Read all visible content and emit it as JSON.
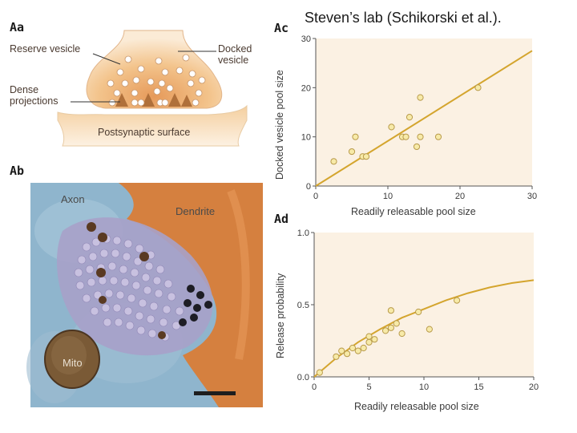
{
  "slide_title": "Steven’s lab (Schikorski et al.).",
  "panel_labels": {
    "aa": "Aa",
    "ab": "Ab",
    "ac": "Ac",
    "ad": "Ad"
  },
  "diagram_aa": {
    "reserve_vesicle": "Reserve vesicle",
    "docked_vesicle_line1": "Docked",
    "docked_vesicle_line2": "vesicle",
    "dense_projections_line1": "Dense",
    "dense_projections_line2": "projections",
    "postsynaptic_surface": "Postsynaptic surface",
    "colors": {
      "terminal": "#f3c48c",
      "postsynaptic": "#f6dcb3",
      "projection": "#b0703a",
      "vesicle": "#ffffff"
    }
  },
  "micrograph_ab": {
    "axon": "Axon",
    "dendrite": "Dendrite",
    "mito": "Mito",
    "colors": {
      "background": "#8fb5cd",
      "dendrite": "#d5803f",
      "mito": "#7a5a36",
      "scale_bar": "#1e1e1e"
    }
  },
  "chart_data": [
    {
      "type": "scatter",
      "panel": "Ac",
      "xlabel": "Readily releasable pool size",
      "ylabel": "Docked vesicle pool size",
      "xlim": [
        0,
        30
      ],
      "ylim": [
        0,
        30
      ],
      "x_ticks": [
        "0",
        "10",
        "20",
        "30"
      ],
      "y_ticks": [
        "0",
        "10",
        "20",
        "30"
      ],
      "grid": false,
      "points": [
        [
          2.5,
          5
        ],
        [
          5,
          7
        ],
        [
          5.5,
          10
        ],
        [
          6.5,
          6
        ],
        [
          7,
          6
        ],
        [
          10.5,
          12
        ],
        [
          12,
          10
        ],
        [
          12.5,
          10
        ],
        [
          13,
          14
        ],
        [
          14,
          8
        ],
        [
          14.5,
          10
        ],
        [
          14.5,
          18
        ],
        [
          17,
          10
        ],
        [
          22.5,
          20
        ]
      ],
      "fit_line": [
        [
          0,
          0
        ],
        [
          30,
          27.5
        ]
      ],
      "colors": {
        "point_fill": "#f7eaa8",
        "point_edge": "#b89a4a",
        "fit_line": "#d4a52e",
        "plot_bg": "#fbf1e3"
      }
    },
    {
      "type": "scatter",
      "panel": "Ad",
      "xlabel": "Readily releasable pool size",
      "ylabel": "Release probability",
      "xlim": [
        0,
        20
      ],
      "ylim": [
        0,
        1.0
      ],
      "x_ticks": [
        "0",
        "5",
        "10",
        "15",
        "20"
      ],
      "y_ticks": [
        "0.0",
        "0.5",
        "1.0"
      ],
      "grid": false,
      "points": [
        [
          0.5,
          0.03
        ],
        [
          2,
          0.14
        ],
        [
          2.5,
          0.18
        ],
        [
          3,
          0.16
        ],
        [
          3.5,
          0.2
        ],
        [
          4,
          0.18
        ],
        [
          4.5,
          0.2
        ],
        [
          5,
          0.24
        ],
        [
          5,
          0.28
        ],
        [
          5.5,
          0.26
        ],
        [
          6.5,
          0.32
        ],
        [
          7,
          0.46
        ],
        [
          7,
          0.34
        ],
        [
          7.5,
          0.37
        ],
        [
          8,
          0.3
        ],
        [
          9.5,
          0.45
        ],
        [
          10.5,
          0.33
        ],
        [
          13,
          0.53
        ]
      ],
      "fit_curve": [
        [
          0,
          0
        ],
        [
          2,
          0.13
        ],
        [
          4,
          0.24
        ],
        [
          6,
          0.33
        ],
        [
          8,
          0.41
        ],
        [
          10,
          0.47
        ],
        [
          12,
          0.53
        ],
        [
          14,
          0.58
        ],
        [
          16,
          0.62
        ],
        [
          18,
          0.65
        ],
        [
          20,
          0.67
        ]
      ],
      "colors": {
        "point_fill": "#f7eaa8",
        "point_edge": "#b89a4a",
        "fit_line": "#d4a52e",
        "plot_bg": "#fbf1e3"
      }
    }
  ]
}
